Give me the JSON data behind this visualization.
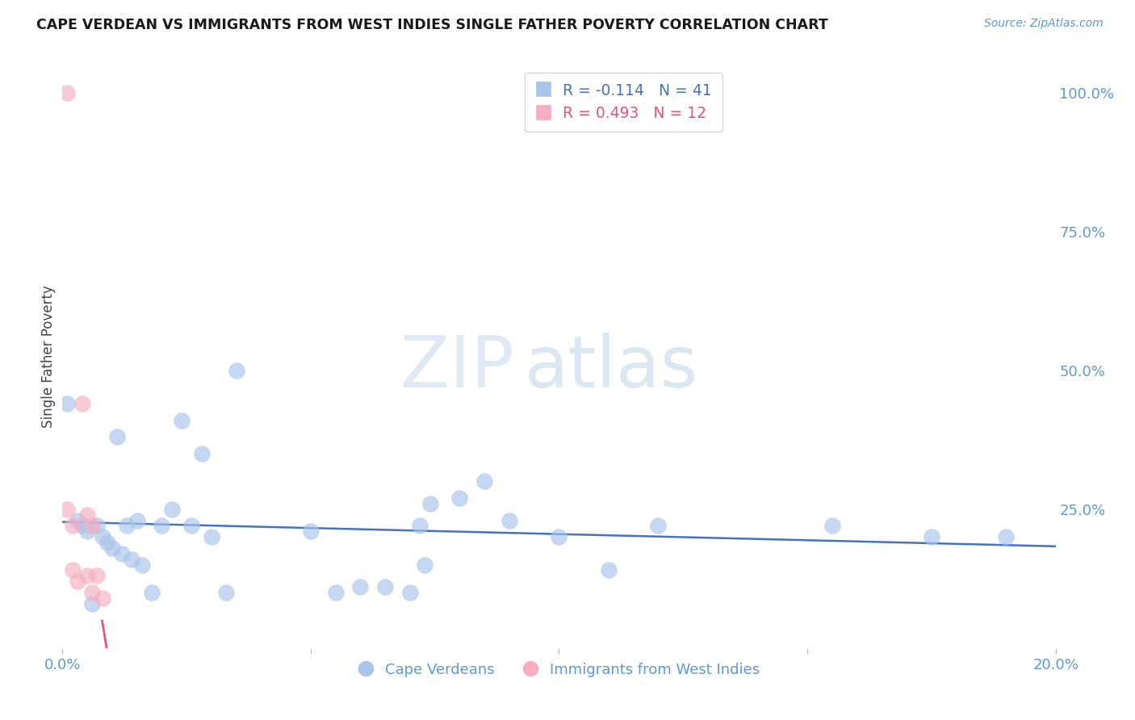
{
  "title": "CAPE VERDEAN VS IMMIGRANTS FROM WEST INDIES SINGLE FATHER POVERTY CORRELATION CHART",
  "source": "Source: ZipAtlas.com",
  "ylabel": "Single Father Poverty",
  "x_min": 0.0,
  "x_max": 0.2,
  "y_min": 0.0,
  "y_max": 1.05,
  "blue_R": "-0.114",
  "blue_N": "41",
  "pink_R": "0.493",
  "pink_N": "12",
  "blue_color": "#a8c4ea",
  "pink_color": "#f5aec0",
  "blue_line_color": "#4472c4",
  "pink_line_color": "#e05878",
  "pink_dash_color": "#f0b8c8",
  "watermark_zip": "ZIP",
  "watermark_atlas": "atlas",
  "legend_label_blue": "Cape Verdeans",
  "legend_label_pink": "Immigrants from West Indies",
  "blue_points_x": [
    0.001,
    0.003,
    0.004,
    0.005,
    0.006,
    0.007,
    0.008,
    0.009,
    0.01,
    0.011,
    0.012,
    0.013,
    0.014,
    0.015,
    0.016,
    0.018,
    0.02,
    0.022,
    0.024,
    0.026,
    0.028,
    0.03,
    0.033,
    0.035,
    0.05,
    0.055,
    0.06,
    0.065,
    0.07,
    0.072,
    0.073,
    0.074,
    0.08,
    0.085,
    0.09,
    0.1,
    0.11,
    0.12,
    0.155,
    0.175,
    0.19
  ],
  "blue_points_y": [
    0.44,
    0.23,
    0.22,
    0.21,
    0.08,
    0.22,
    0.2,
    0.19,
    0.18,
    0.38,
    0.17,
    0.22,
    0.16,
    0.23,
    0.15,
    0.1,
    0.22,
    0.25,
    0.41,
    0.22,
    0.35,
    0.2,
    0.1,
    0.5,
    0.21,
    0.1,
    0.11,
    0.11,
    0.1,
    0.22,
    0.15,
    0.26,
    0.27,
    0.3,
    0.23,
    0.2,
    0.14,
    0.22,
    0.22,
    0.2,
    0.2
  ],
  "pink_points_x": [
    0.001,
    0.001,
    0.002,
    0.002,
    0.003,
    0.004,
    0.005,
    0.005,
    0.006,
    0.006,
    0.007,
    0.008
  ],
  "pink_points_y": [
    1.0,
    0.25,
    0.22,
    0.14,
    0.12,
    0.44,
    0.24,
    0.13,
    0.22,
    0.1,
    0.13,
    0.09
  ],
  "background_color": "#ffffff",
  "grid_color": "#d8e4f0",
  "title_color": "#1a1a1a",
  "axis_color": "#5b9bd5",
  "y_ticks_right": [
    0.25,
    0.5,
    0.75,
    1.0
  ],
  "y_tick_labels_right": [
    "25.0%",
    "50.0%",
    "75.0%",
    "100.0%"
  ]
}
